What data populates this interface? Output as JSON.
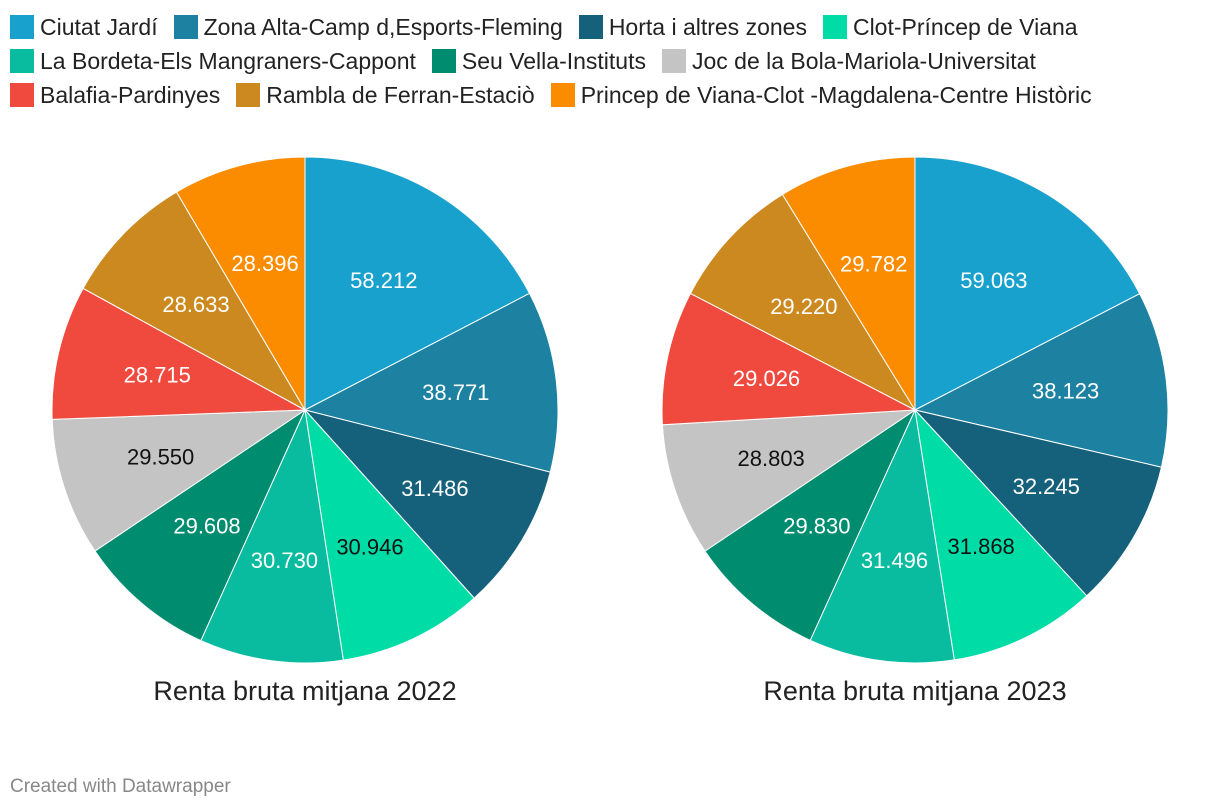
{
  "legend": {
    "rows": [
      [
        {
          "label": "Ciutat Jardí",
          "color": "#18a1cd"
        },
        {
          "label": "Zona Alta-Camp d,Esports-Fleming",
          "color": "#1d81a2"
        },
        {
          "label": "Horta i altres zones",
          "color": "#15607a"
        },
        {
          "label": "Clot-Príncep de Viana",
          "color": "#00dca6"
        }
      ],
      [
        {
          "label": "La Bordeta-Els Mangraners-Cappont",
          "color": "#09bb9f"
        },
        {
          "label": "Seu Vella-Instituts",
          "color": "#008c6f"
        },
        {
          "label": "Joc de la Bola-Mariola-Universitat",
          "color": "#c4c4c4"
        }
      ],
      [
        {
          "label": "Balafia-Pardinyes",
          "color": "#f04a3e"
        },
        {
          "label": "Rambla de Ferran-Estaciò",
          "color": "#cc891f"
        },
        {
          "label": "Princep de Viana-Clot -Magdalena-Centre Històric",
          "color": "#fb8c00"
        }
      ]
    ]
  },
  "chart_data": [
    {
      "type": "pie",
      "title": "Renta bruta mitjana 2022",
      "categories": [
        "Ciutat Jardí",
        "Zona Alta-Camp d,Esports-Fleming",
        "Horta i altres zones",
        "Clot-Príncep de Viana",
        "La Bordeta-Els Mangraners-Cappont",
        "Seu Vella-Instituts",
        "Joc de la Bola-Mariola-Universitat",
        "Balafia-Pardinyes",
        "Rambla de Ferran-Estaciò",
        "Princep de Viana-Clot -Magdalena-Centre Històric"
      ],
      "values": [
        58212,
        38771,
        31486,
        30946,
        30730,
        29608,
        29550,
        28715,
        28633,
        28396
      ],
      "value_labels": [
        "58.212",
        "38.771",
        "31.486",
        "30.946",
        "30.730",
        "29.608",
        "29.550",
        "28.715",
        "28.633",
        "28.396"
      ],
      "label_colors": [
        "#ffffff",
        "#ffffff",
        "#ffffff",
        "#111111",
        "#ffffff",
        "#ffffff",
        "#111111",
        "#ffffff",
        "#ffffff",
        "#ffffff"
      ]
    },
    {
      "type": "pie",
      "title": "Renta bruta mitjana 2023",
      "categories": [
        "Ciutat Jardí",
        "Zona Alta-Camp d,Esports-Fleming",
        "Horta i altres zones",
        "Clot-Príncep de Viana",
        "La Bordeta-Els Mangraners-Cappont",
        "Seu Vella-Instituts",
        "Joc de la Bola-Mariola-Universitat",
        "Balafia-Pardinyes",
        "Rambla de Ferran-Estaciò",
        "Princep de Viana-Clot -Magdalena-Centre Històric"
      ],
      "values": [
        59063,
        38123,
        32245,
        31868,
        31496,
        29830,
        28803,
        29026,
        29220,
        29782
      ],
      "value_labels": [
        "59.063",
        "38.123",
        "32.245",
        "31.868",
        "31.496",
        "29.830",
        "28.803",
        "29.026",
        "29.220",
        "29.782"
      ],
      "label_colors": [
        "#ffffff",
        "#ffffff",
        "#ffffff",
        "#111111",
        "#ffffff",
        "#ffffff",
        "#111111",
        "#ffffff",
        "#ffffff",
        "#ffffff"
      ]
    }
  ],
  "colors": [
    "#18a1cd",
    "#1d81a2",
    "#15607a",
    "#00dca6",
    "#09bb9f",
    "#008c6f",
    "#c4c4c4",
    "#f04a3e",
    "#cc891f",
    "#fb8c00"
  ],
  "footer": "Created with Datawrapper"
}
